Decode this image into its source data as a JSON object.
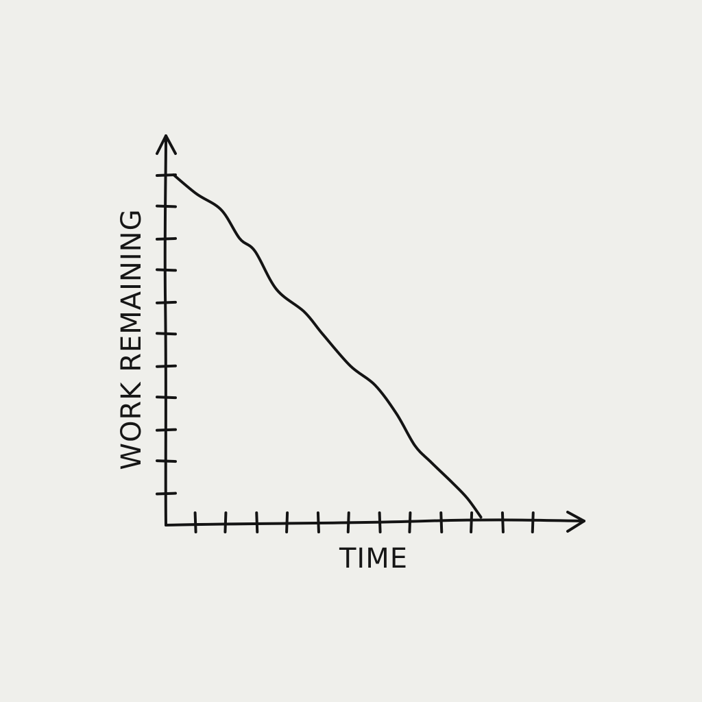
{
  "chart_data": {
    "type": "line",
    "title": "",
    "xlabel": "TIME",
    "ylabel": "WORK REMAINING",
    "x_tick_count": 12,
    "y_tick_count": 11,
    "xlim": [
      0,
      12
    ],
    "ylim": [
      0,
      11
    ],
    "grid": false,
    "legend": "none",
    "series": [
      {
        "x": [
          0.25,
          1.0,
          1.8,
          2.4,
          2.9,
          3.6,
          4.5,
          5.1,
          6.0,
          6.8,
          7.5,
          8.1,
          8.6,
          9.3,
          9.8,
          10.25
        ],
        "y": [
          11.0,
          10.4,
          9.9,
          9.0,
          8.6,
          7.4,
          6.7,
          6.0,
          5.0,
          4.4,
          3.5,
          2.5,
          2.0,
          1.35,
          0.85,
          0.25
        ]
      }
    ],
    "colors": {
      "ink": "#141414",
      "paper": "#efefeb"
    }
  }
}
